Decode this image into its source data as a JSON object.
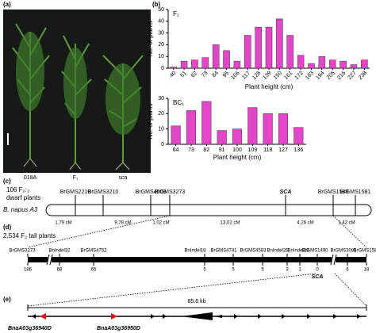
{
  "panel_labels": [
    "(a)",
    "(b)",
    "(c)",
    "(d)",
    "(e)"
  ],
  "photo": {
    "labels": [
      "018A",
      "F₁",
      "sca"
    ]
  },
  "chart_data": [
    {
      "type": "bar",
      "title": "F₂",
      "y_label": "No. of plants",
      "x_label": "Plant height (cm)",
      "categories": [
        "40",
        "51",
        "62",
        "73",
        "84",
        "95",
        "106",
        "117",
        "128",
        "139",
        "150",
        "161",
        "172",
        "183",
        "194",
        "205",
        "216",
        "227",
        "238"
      ],
      "values": [
        1,
        6,
        7,
        9,
        20,
        15,
        6,
        28,
        35,
        35,
        42,
        28,
        11,
        4,
        10,
        7,
        6,
        3,
        7
      ],
      "color": "#e545c9",
      "ylim": [
        0,
        50
      ],
      "yticks": [
        0,
        10,
        20,
        30,
        40,
        50
      ]
    },
    {
      "type": "bar",
      "title": "BC₁",
      "y_label": "No. of plants",
      "x_label": "Plant height (cm)",
      "categories": [
        "64",
        "73",
        "82",
        "91",
        "100",
        "109",
        "118",
        "127",
        "136"
      ],
      "values": [
        12,
        22,
        28,
        9,
        10,
        24,
        20,
        20,
        11
      ],
      "color": "#e545c9",
      "ylim": [
        0,
        30
      ],
      "yticks": [
        0,
        10,
        20,
        30
      ]
    }
  ],
  "map_c": {
    "population": [
      "106 F₂:₃",
      "dwarf plants"
    ],
    "chromosome": "B. napus A3",
    "markers": [
      "BrGMS2210",
      "BrGMS3210",
      "BrGMS4509",
      "BrGMS3273",
      "SCA",
      "BrGMS1588",
      "BrGMS1581"
    ],
    "distances": [
      "1.79 cM",
      "9.78 cM",
      "1.02 cM",
      "13.02 cM",
      "4.26 cM",
      "1.42 cM"
    ]
  },
  "map_d": {
    "population": "2,534 F₂ tall plants",
    "markers": [
      "BrGMS3273",
      "BnIndel32",
      "BrGMS4752",
      "BnIndel18",
      "BrGMS4741",
      "BrGMS4583",
      "BnIndel26",
      "BnIndel28",
      "BrGMS1490",
      "BrGMS3081",
      "BrGMS1588"
    ],
    "recombinants": [
      "186",
      "68",
      "65",
      "5",
      "5",
      "5",
      "3",
      "1",
      "0",
      "6",
      "18"
    ],
    "locus": "SCA"
  },
  "map_e": {
    "size": "85.6 kb",
    "genes": [
      "BnaA03g36940D",
      "BnaA03g36950D"
    ]
  }
}
